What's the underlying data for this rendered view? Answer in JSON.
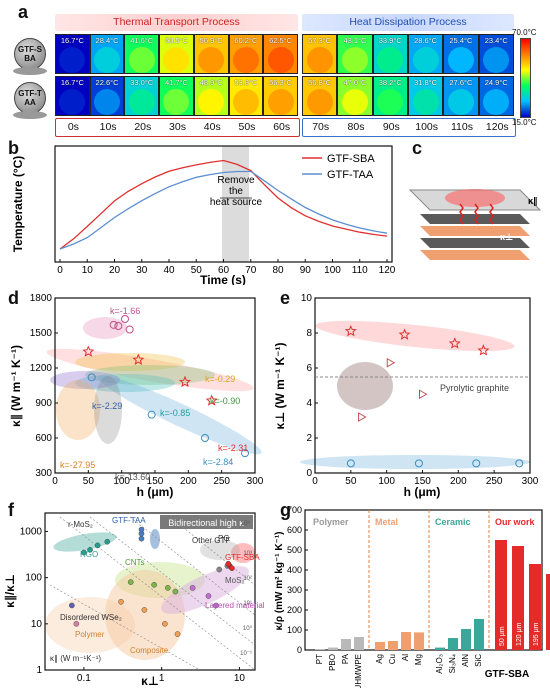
{
  "panels": {
    "a": "a",
    "b": "b",
    "c": "c",
    "d": "d",
    "e": "e",
    "f": "f",
    "g": "g"
  },
  "panel_a": {
    "header_left": "Thermal Transport Process",
    "header_right": "Heat Dissipation Process",
    "row_labels": [
      "GTF-SBA",
      "GTF-TAA"
    ],
    "row1_temps": [
      "16.7°C",
      "28.4°C",
      "41.6°C",
      "50.5°C",
      "56.9°C",
      "60.2°C",
      "62.5°C",
      "57.3°C",
      "43.1°C",
      "33.9°C",
      "28.6°C",
      "25.4°C",
      "23.4°C"
    ],
    "row2_temps": [
      "16.7°C",
      "22.6°C",
      "33.0°C",
      "41.7°C",
      "48.9°C",
      "53.8°C",
      "56.3°C",
      "56.8°C",
      "47.0°C",
      "38.2°C",
      "31.8°C",
      "27.6°C",
      "24.9°C"
    ],
    "times_left": [
      "0s",
      "10s",
      "20s",
      "30s",
      "40s",
      "50s",
      "60s"
    ],
    "times_right": [
      "70s",
      "80s",
      "90s",
      "100s",
      "110s",
      "120s"
    ],
    "scale_max": "70.0°C",
    "scale_min": "15.0°C"
  },
  "chart_data": [
    {
      "type": "line",
      "panel": "b",
      "xlabel": "Time (s)",
      "ylabel": "Temperature (°C)",
      "xlim": [
        0,
        120
      ],
      "x_ticks": [
        "0",
        "10",
        "20",
        "30",
        "40",
        "50",
        "60",
        "70",
        "80",
        "90",
        "100",
        "110",
        "120"
      ],
      "annotation": "Remove the heat source",
      "series": [
        {
          "name": "GTF-SBA",
          "color": "#e03030",
          "x": [
            0,
            5,
            10,
            15,
            20,
            25,
            30,
            35,
            40,
            45,
            50,
            55,
            60,
            65,
            70,
            75,
            80,
            85,
            90,
            95,
            100,
            105,
            110,
            115,
            120
          ],
          "y": [
            16.7,
            22,
            28.4,
            35,
            41.6,
            46.5,
            50.5,
            54,
            56.9,
            58.8,
            60.2,
            61.5,
            62.5,
            60.5,
            57.3,
            50,
            43.1,
            38,
            33.9,
            31,
            28.6,
            27,
            25.4,
            24.3,
            23.4
          ]
        },
        {
          "name": "GTF-TAA",
          "color": "#5b8fd0",
          "x": [
            0,
            5,
            10,
            15,
            20,
            25,
            30,
            35,
            40,
            45,
            50,
            55,
            60,
            65,
            70,
            75,
            80,
            85,
            90,
            95,
            100,
            105,
            110,
            115,
            120
          ],
          "y": [
            16.7,
            19.3,
            22.6,
            27.8,
            33.0,
            37.5,
            41.7,
            45.5,
            48.9,
            51.5,
            53.8,
            55.2,
            56.3,
            56.8,
            56.8,
            52,
            47.0,
            42.5,
            38.2,
            34.8,
            31.8,
            29.5,
            27.6,
            26.1,
            24.9
          ]
        }
      ]
    },
    {
      "type": "scatter",
      "panel": "d",
      "xlabel": "h (μm)",
      "ylabel": "κ∥ (W m⁻¹ K⁻¹)",
      "xlim": [
        0,
        300
      ],
      "ylim": [
        300,
        1800
      ],
      "x_ticks": [
        "0",
        "50",
        "100",
        "150",
        "200",
        "250",
        "300"
      ],
      "y_ticks": [
        "300",
        "600",
        "900",
        "1200",
        "1500",
        "1800"
      ],
      "annotations": [
        "k=-1.66",
        "k=-0.29",
        "k=-0.90",
        "k=-2.29",
        "k=-0.85",
        "k=-2.31",
        "k=-27.95",
        "k=-13.60",
        "k=-2.84"
      ],
      "series": [
        {
          "name": "GTF-SBA",
          "color": "#e03030",
          "x": [
            50,
            125,
            195,
            235
          ],
          "y": [
            1340,
            1270,
            1080,
            920
          ]
        },
        {
          "name": "pink",
          "color": "#c0508a",
          "x": [
            95,
            105,
            112,
            88
          ],
          "y": [
            1560,
            1620,
            1530,
            1570
          ]
        },
        {
          "name": "blue",
          "color": "#3a8fc0",
          "x": [
            55,
            145,
            225,
            285
          ],
          "y": [
            1120,
            800,
            600,
            470
          ]
        }
      ]
    },
    {
      "type": "scatter",
      "panel": "e",
      "xlabel": "h (μm)",
      "ylabel": "κ⊥ (W m⁻¹ K⁻¹)",
      "xlim": [
        0,
        300
      ],
      "ylim": [
        0,
        10
      ],
      "x_ticks": [
        "0",
        "50",
        "100",
        "150",
        "200",
        "250",
        "300"
      ],
      "y_ticks": [
        "0",
        "2",
        "4",
        "6",
        "8",
        "10"
      ],
      "annotation": "Pyrolytic graphite",
      "series": [
        {
          "name": "GTF-SBA",
          "color": "#e03030",
          "x": [
            50,
            125,
            195,
            235
          ],
          "y": [
            8.1,
            7.9,
            7.4,
            7.0
          ]
        },
        {
          "name": "other",
          "color": "#888888",
          "x": [
            105,
            150,
            65
          ],
          "y": [
            6.3,
            4.5,
            3.2
          ]
        },
        {
          "name": "blue",
          "color": "#3a8fc0",
          "x": [
            50,
            145,
            225,
            285
          ],
          "y": [
            0.55,
            0.55,
            0.55,
            0.55
          ]
        }
      ]
    },
    {
      "type": "scatter",
      "panel": "f",
      "xlabel": "κ⊥",
      "ylabel": "κ∥/κ⊥",
      "x_ticks": [
        "0.1",
        "1",
        "10"
      ],
      "y_ticks": [
        "1",
        "10",
        "100",
        "1000"
      ],
      "labels": [
        "Bidirectional high κ",
        "r-MoS₂",
        "GTF-TAA",
        "RGO",
        "CNTs",
        "Other GTF",
        "PG",
        "GTF-SBA",
        "MoS₂",
        "Layered material",
        "Disordered WSe₂",
        "Polymer",
        "Composite",
        "κ∥ (W m⁻¹K⁻¹)"
      ],
      "iso_labels": [
        "10⁴",
        "10³",
        "10²",
        "10¹",
        "10⁰",
        "10⁻¹"
      ]
    },
    {
      "type": "bar",
      "panel": "g",
      "ylabel": "κ/ρ (mW m² kg⁻¹ K⁻¹)",
      "ylim": [
        0,
        700
      ],
      "y_ticks": [
        "0",
        "100",
        "200",
        "300",
        "400",
        "500",
        "600",
        "700"
      ],
      "groups": [
        "Polymer",
        "Metal",
        "Ceramic",
        "Our work"
      ],
      "categories": [
        "PT",
        "PBO",
        "PA",
        "UHMWPE",
        "Ag",
        "Cu",
        "Al",
        "Mg",
        "Al₂O₃",
        "Si₃N₄",
        "AlN",
        "SiC",
        "50 μm",
        "120 μm",
        "195 μm",
        "235 μm"
      ],
      "values": [
        3,
        12,
        55,
        65,
        40,
        45,
        90,
        88,
        12,
        60,
        105,
        155,
        550,
        520,
        430,
        380
      ],
      "bottom_label": "GTF-SBA",
      "colors": {
        "Polymer": "#b9b9b9",
        "Metal": "#f0a070",
        "Ceramic": "#3aa79b",
        "Our work": "#e52a2a"
      }
    }
  ],
  "panel_c": {
    "k_par": "κ∥",
    "k_perp": "κ⊥"
  }
}
